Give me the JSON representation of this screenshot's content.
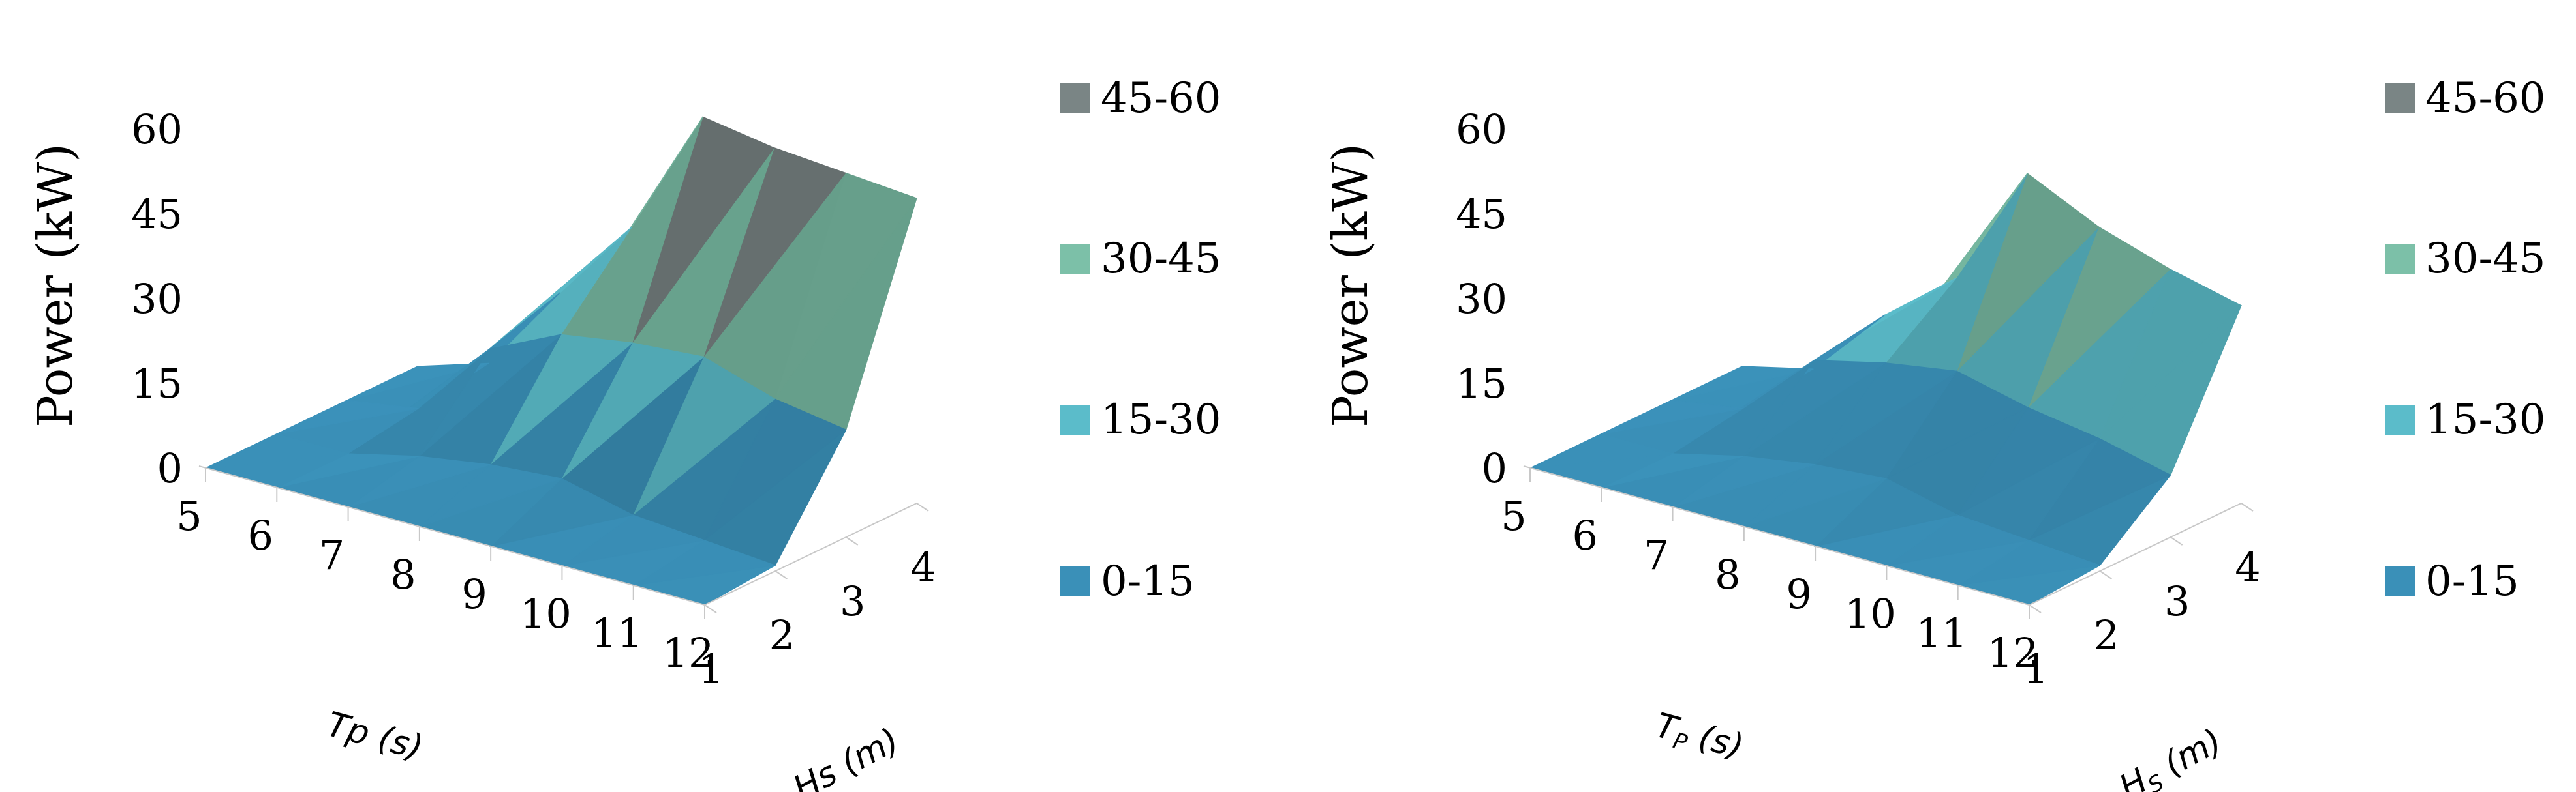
{
  "chart_data": [
    {
      "type": "surface",
      "ylabel": "Power (kW)",
      "zticks": [
        "0",
        "15",
        "30",
        "45",
        "60"
      ],
      "zlim": [
        0,
        60
      ],
      "x_title": "Tp (s)",
      "y_title": "Hs (m)",
      "x": [
        "5",
        "6",
        "7",
        "8",
        "9",
        "10",
        "11",
        "12"
      ],
      "y": [
        "1",
        "2",
        "3",
        "4"
      ],
      "values": [
        [
          0,
          0,
          0,
          0,
          0,
          0,
          0,
          0
        ],
        [
          0,
          0,
          3,
          5,
          6,
          3,
          2,
          1
        ],
        [
          0,
          2,
          16,
          22,
          24,
          25,
          21,
          19
        ],
        [
          0,
          4,
          20,
          35,
          58,
          56,
          55,
          54
        ]
      ],
      "legend": [
        {
          "label": "45-60",
          "color": "#7a8585"
        },
        {
          "label": "30-45",
          "color": "#7cc0a8"
        },
        {
          "label": "15-30",
          "color": "#5bbcca"
        },
        {
          "label": "0-15",
          "color": "#3a90b8"
        }
      ],
      "legend_position": "right"
    },
    {
      "type": "surface",
      "ylabel": "Power (kW)",
      "zticks": [
        "0",
        "15",
        "30",
        "45",
        "60"
      ],
      "zlim": [
        0,
        60
      ],
      "x_title_main": "T",
      "x_title_sub": "P",
      "x_title_unit": " (s)",
      "y_title_main": "H",
      "y_title_sub": "S",
      "y_title_unit": " (m)",
      "x": [
        "5",
        "6",
        "7",
        "8",
        "9",
        "10",
        "11",
        "12"
      ],
      "y": [
        "1",
        "2",
        "3",
        "4"
      ],
      "values": [
        [
          0,
          0,
          0,
          0,
          0,
          0,
          0,
          0
        ],
        [
          0,
          0,
          3,
          5,
          6,
          3,
          2,
          1
        ],
        [
          0,
          2,
          14,
          17,
          19,
          16,
          14,
          11
        ],
        [
          0,
          3,
          16,
          26,
          48,
          42,
          38,
          35
        ]
      ],
      "legend": [
        {
          "label": "45-60",
          "color": "#7a8585"
        },
        {
          "label": "30-45",
          "color": "#7cc0a8"
        },
        {
          "label": "15-30",
          "color": "#5bbcca"
        },
        {
          "label": "0-15",
          "color": "#3a90b8"
        }
      ],
      "legend_position": "right"
    }
  ]
}
